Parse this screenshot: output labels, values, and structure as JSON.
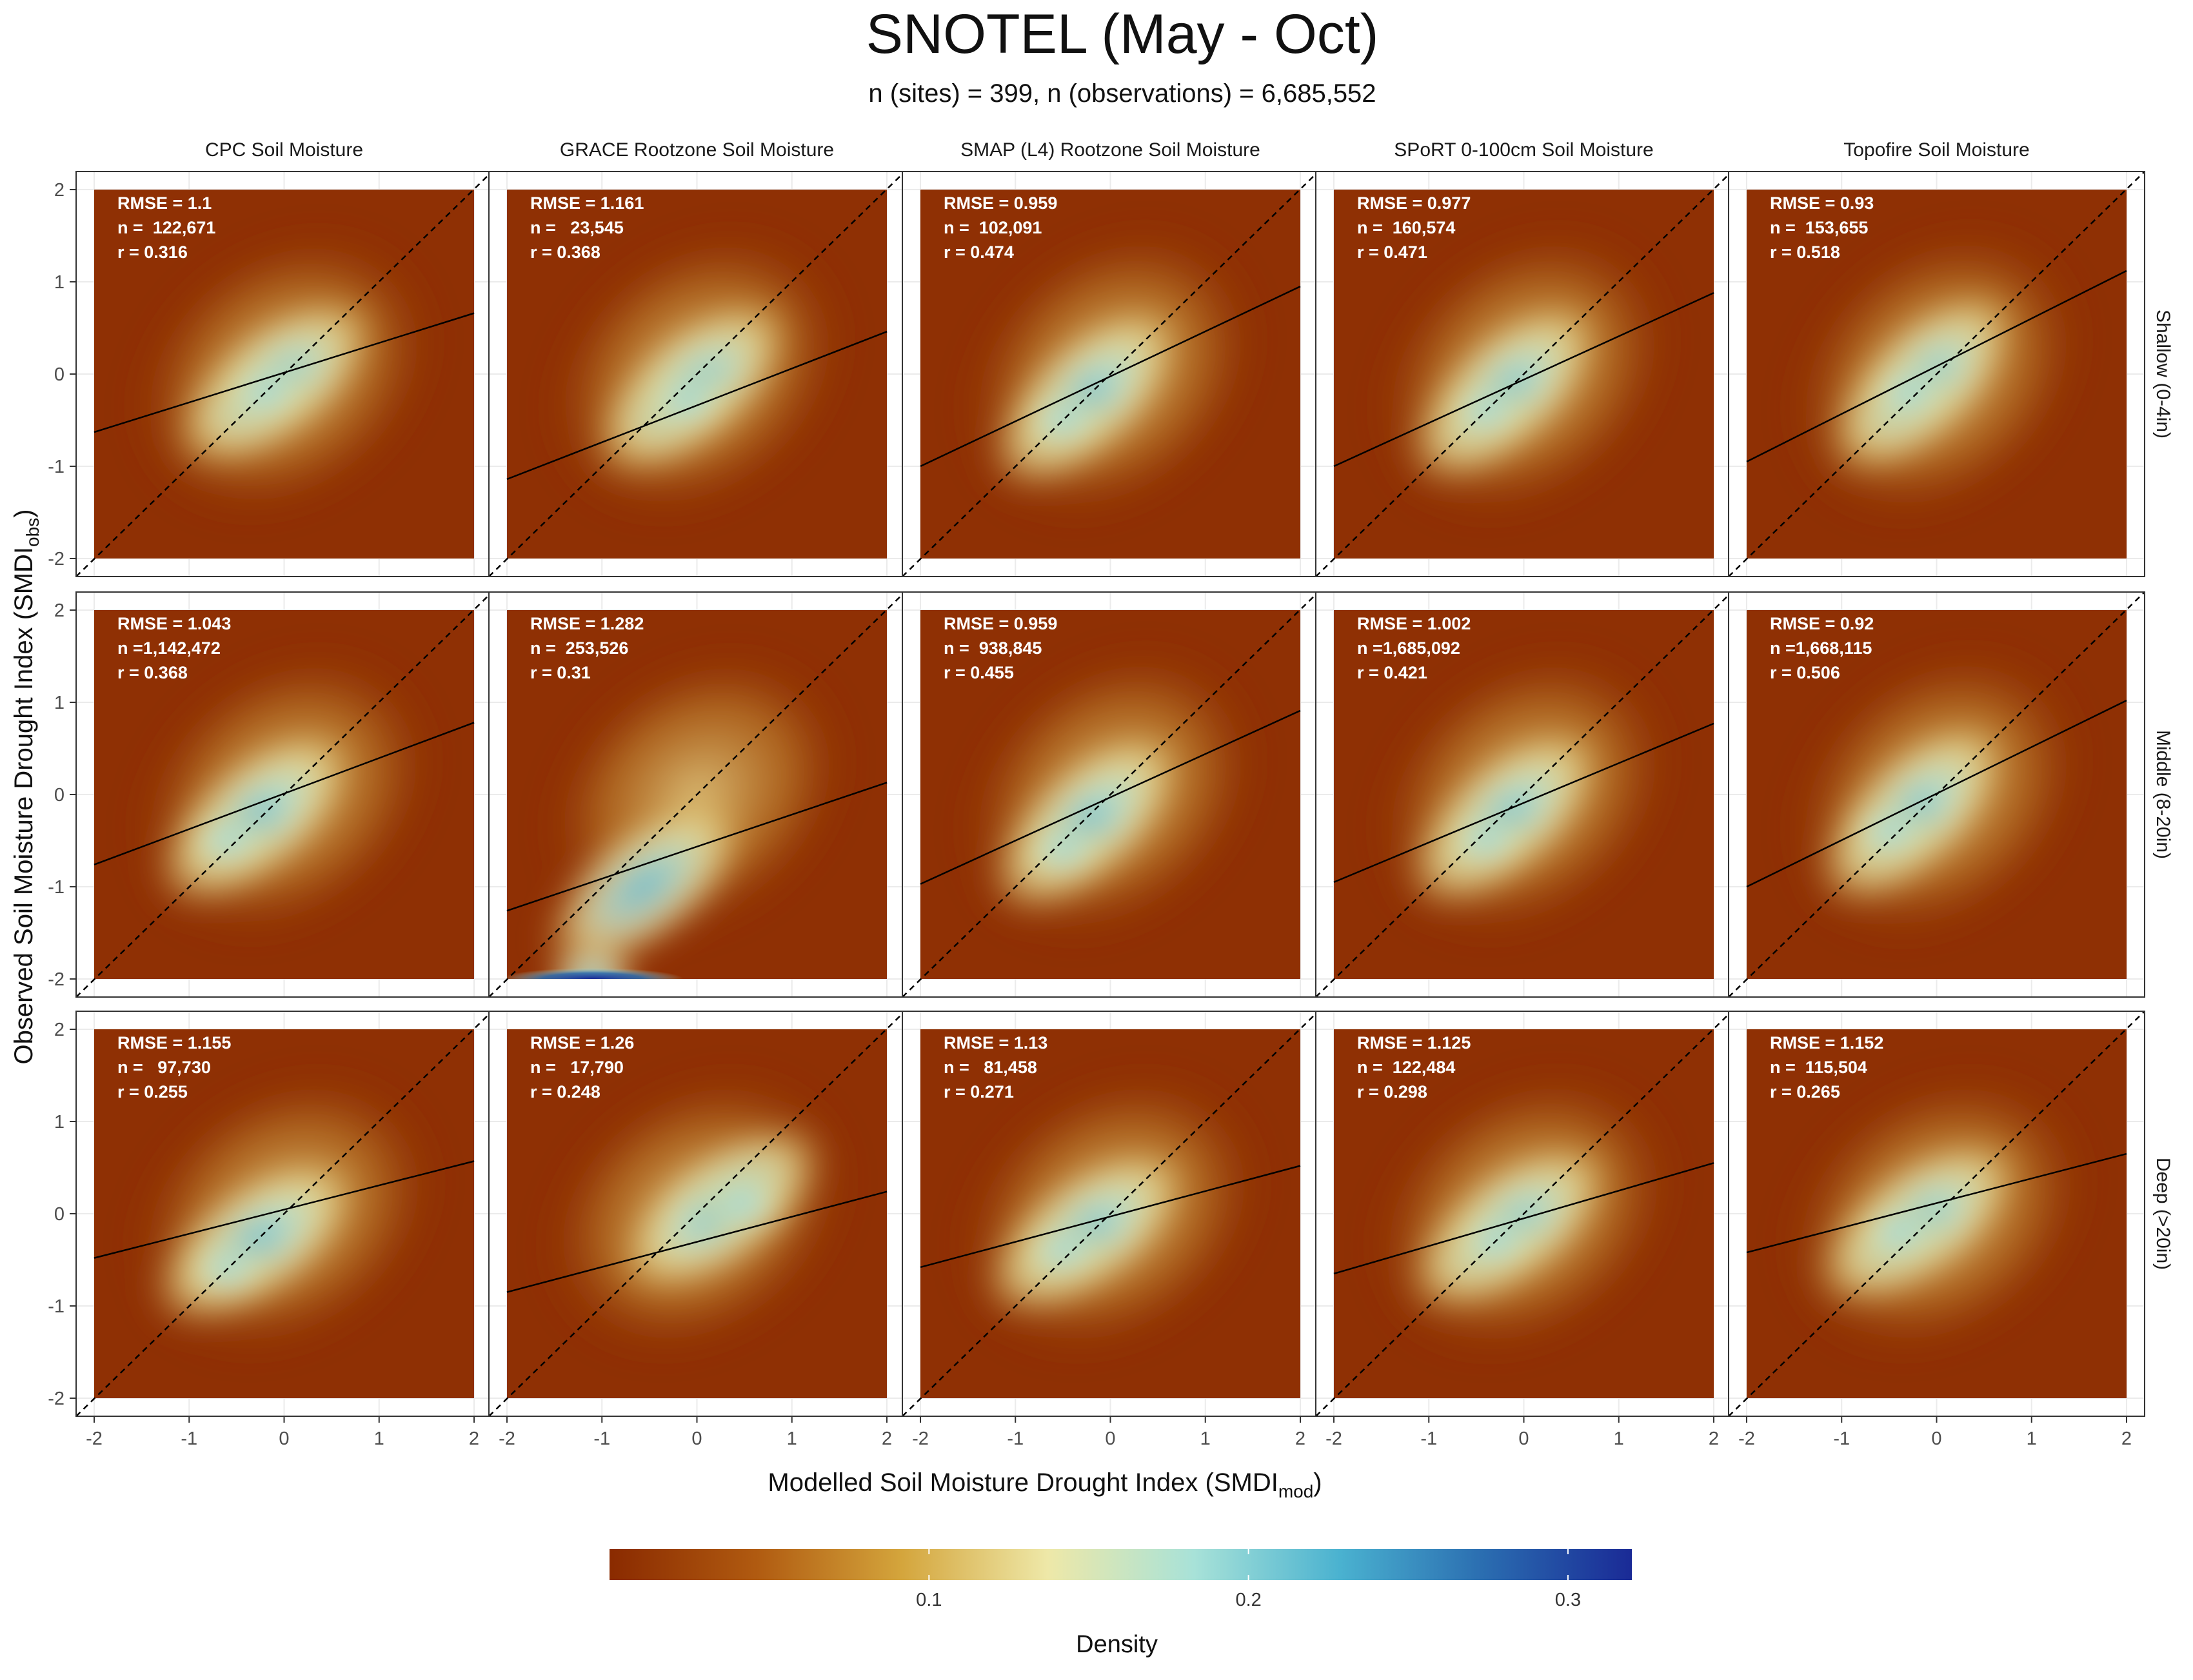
{
  "chart_data": {
    "type": "heatmap",
    "title": "SNOTEL (May - Oct)",
    "subtitle": "n (sites) = 399, n (observations) = 6,685,552",
    "xlabel_main": "Modelled Soil Moisture Drought Index (",
    "xlabel_var": "SMDI",
    "xlabel_sub": "mod",
    "ylabel_main": "Observed Soil Moisture Drought Index (",
    "ylabel_var": "SMDI",
    "ylabel_sub": "obs",
    "xlim": [
      -2,
      2
    ],
    "ylim": [
      -2,
      2
    ],
    "x_ticks": [
      "-2",
      "-1",
      "0",
      "1",
      "2"
    ],
    "y_ticks": [
      "-2",
      "-1",
      "0",
      "1",
      "2"
    ],
    "columns": [
      "CPC Soil Moisture",
      "GRACE Rootzone Soil Moisture",
      "SMAP (L4) Rootzone Soil Moisture",
      "SPoRT 0-100cm Soil Moisture",
      "Topofire Soil Moisture"
    ],
    "rows": [
      "Shallow (0-4in)",
      "Middle (8-20in)",
      "Deep (>20in)"
    ],
    "reference_line": "1:1 (dashed)",
    "panels": [
      [
        {
          "rmse": "RMSE = 1.1",
          "n": "n =  122,671",
          "r": "r = 0.316",
          "fit": {
            "x": [
              -2,
              2
            ],
            "y": [
              -0.63,
              0.66
            ]
          },
          "peak": {
            "x": -0.2,
            "y": -0.2
          }
        },
        {
          "rmse": "RMSE = 1.161",
          "n": "n =   23,545",
          "r": "r = 0.368",
          "fit": {
            "x": [
              -2,
              2
            ],
            "y": [
              -1.14,
              0.46
            ]
          },
          "peak": {
            "x": -0.1,
            "y": -0.3
          }
        },
        {
          "rmse": "RMSE = 0.959",
          "n": "n =  102,091",
          "r": "r = 0.474",
          "fit": {
            "x": [
              -2,
              2
            ],
            "y": [
              -1.0,
              0.95
            ]
          },
          "peak": {
            "x": -0.5,
            "y": -0.5
          }
        },
        {
          "rmse": "RMSE = 0.977",
          "n": "n =  160,574",
          "r": "r = 0.471",
          "fit": {
            "x": [
              -2,
              2
            ],
            "y": [
              -1.0,
              0.88
            ]
          },
          "peak": {
            "x": -0.4,
            "y": -0.4
          }
        },
        {
          "rmse": "RMSE = 0.93",
          "n": "n =  153,655",
          "r": "r = 0.518",
          "fit": {
            "x": [
              -2,
              2
            ],
            "y": [
              -0.95,
              1.12
            ]
          },
          "peak": {
            "x": -0.3,
            "y": -0.2
          }
        }
      ],
      [
        {
          "rmse": "RMSE = 1.043",
          "n": "n =1,142,472",
          "r": "r = 0.368",
          "fit": {
            "x": [
              -2,
              2
            ],
            "y": [
              -0.76,
              0.78
            ]
          },
          "peak": {
            "x": -0.6,
            "y": -0.5
          }
        },
        {
          "rmse": "RMSE = 1.282",
          "n": "n =  253,526",
          "r": "r = 0.31",
          "fit": {
            "x": [
              -2,
              2
            ],
            "y": [
              -1.26,
              0.13
            ]
          },
          "peak": {
            "x": -1.1,
            "y": -1.98
          }
        },
        {
          "rmse": "RMSE = 0.959",
          "n": "n =  938,845",
          "r": "r = 0.455",
          "fit": {
            "x": [
              -2,
              2
            ],
            "y": [
              -0.97,
              0.91
            ]
          },
          "peak": {
            "x": -0.5,
            "y": -0.6
          }
        },
        {
          "rmse": "RMSE = 1.002",
          "n": "n =1,685,092",
          "r": "r = 0.421",
          "fit": {
            "x": [
              -2,
              2
            ],
            "y": [
              -0.95,
              0.77
            ]
          },
          "peak": {
            "x": -0.4,
            "y": -0.5
          }
        },
        {
          "rmse": "RMSE = 0.92",
          "n": "n =1,668,115",
          "r": "r = 0.506",
          "fit": {
            "x": [
              -2,
              2
            ],
            "y": [
              -1.0,
              1.02
            ]
          },
          "peak": {
            "x": -0.5,
            "y": -0.4
          }
        }
      ],
      [
        {
          "rmse": "RMSE = 1.155",
          "n": "n =   97,730",
          "r": "r = 0.255",
          "fit": {
            "x": [
              -2,
              2
            ],
            "y": [
              -0.48,
              0.57
            ]
          },
          "peak": {
            "x": -0.6,
            "y": -0.6
          }
        },
        {
          "rmse": "RMSE = 1.26",
          "n": "n =   17,790",
          "r": "r = 0.248",
          "fit": {
            "x": [
              -2,
              2
            ],
            "y": [
              -0.85,
              0.24
            ]
          },
          "peak": {
            "x": 0.5,
            "y": 0.1
          }
        },
        {
          "rmse": "RMSE = 1.13",
          "n": "n =   81,458",
          "r": "r = 0.271",
          "fit": {
            "x": [
              -2,
              2
            ],
            "y": [
              -0.58,
              0.52
            ]
          },
          "peak": {
            "x": -0.5,
            "y": -0.4
          }
        },
        {
          "rmse": "RMSE = 1.125",
          "n": "n =  122,484",
          "r": "r = 0.298",
          "fit": {
            "x": [
              -2,
              2
            ],
            "y": [
              -0.65,
              0.55
            ]
          },
          "peak": {
            "x": -0.3,
            "y": -0.3
          }
        },
        {
          "rmse": "RMSE = 1.152",
          "n": "n =  115,504",
          "r": "r = 0.265",
          "fit": {
            "x": [
              -2,
              2
            ],
            "y": [
              -0.42,
              0.65
            ]
          },
          "peak": {
            "x": -0.4,
            "y": -0.2
          }
        }
      ]
    ],
    "colorbar": {
      "title": "Density",
      "range": [
        0,
        0.32
      ],
      "ticks": [
        0.1,
        0.2,
        0.3
      ],
      "tick_labels": [
        "0.1",
        "0.2",
        "0.3"
      ],
      "colors": [
        "#8a2a00",
        "#b05a10",
        "#d4a53c",
        "#eee8a8",
        "#a8e2d8",
        "#4ab2d0",
        "#2a6cb0",
        "#1a2a96"
      ]
    }
  }
}
